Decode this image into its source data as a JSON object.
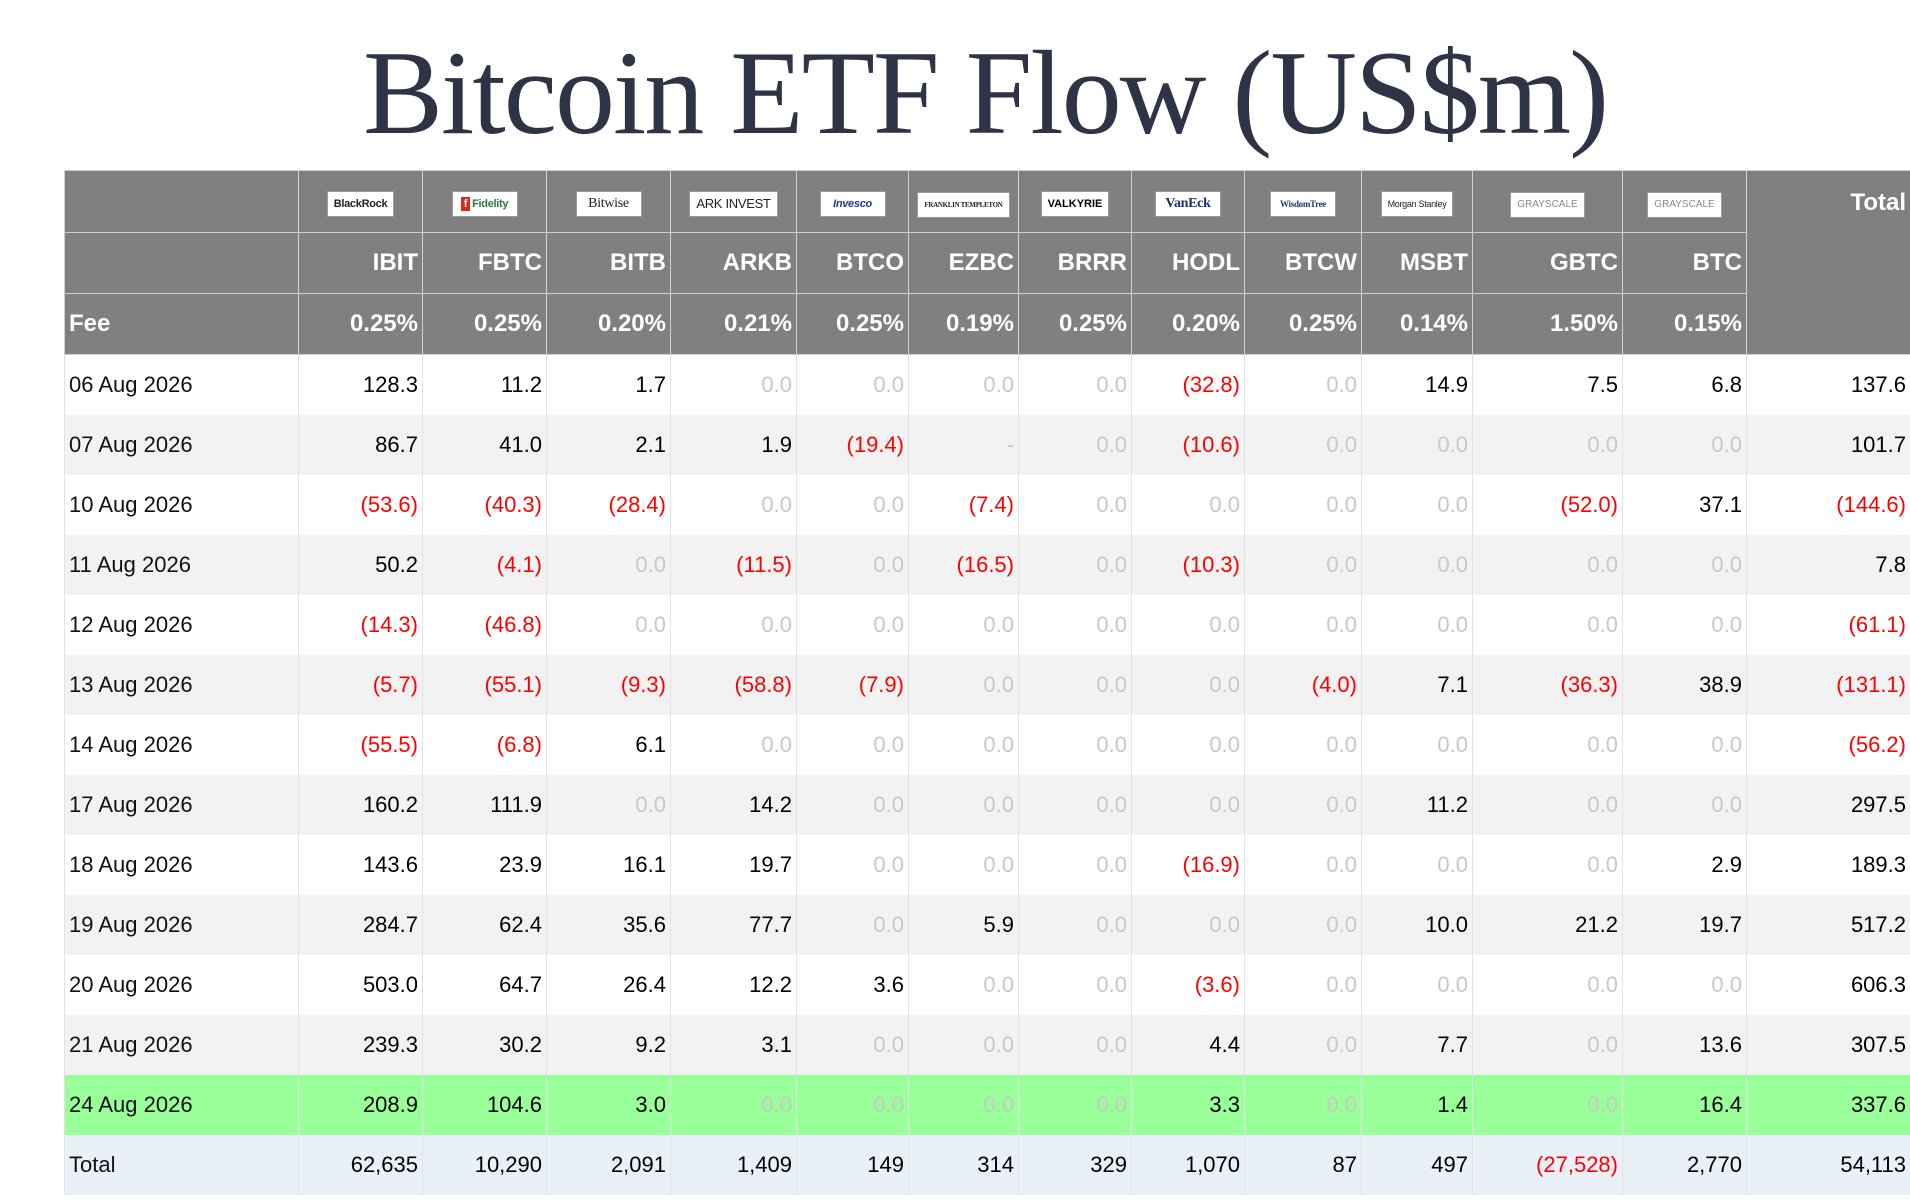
{
  "title": "Bitcoin ETF Flow (US$m)",
  "header": {
    "total_label": "Total",
    "fee_label": "Fee",
    "issuers": [
      {
        "logo_text": "BlackRock",
        "icon": "blackrock-logo-icon",
        "ticker": "IBIT",
        "fee": "0.25%"
      },
      {
        "logo_text": "Fidelity",
        "icon": "fidelity-logo-icon",
        "ticker": "FBTC",
        "fee": "0.25%"
      },
      {
        "logo_text": "Bitwise",
        "icon": "bitwise-logo-icon",
        "ticker": "BITB",
        "fee": "0.20%"
      },
      {
        "logo_text": "ARK INVEST",
        "icon": "ark-invest-logo-icon",
        "ticker": "ARKB",
        "fee": "0.21%"
      },
      {
        "logo_text": "Invesco",
        "icon": "invesco-logo-icon",
        "ticker": "BTCO",
        "fee": "0.25%"
      },
      {
        "logo_text": "FRANKLIN TEMPLETON",
        "icon": "franklin-templeton-logo-icon",
        "ticker": "EZBC",
        "fee": "0.19%"
      },
      {
        "logo_text": "VALKYRIE",
        "icon": "valkyrie-logo-icon",
        "ticker": "BRRR",
        "fee": "0.25%"
      },
      {
        "logo_text": "VanEck",
        "icon": "vaneck-logo-icon",
        "ticker": "HODL",
        "fee": "0.20%"
      },
      {
        "logo_text": "WisdomTree",
        "icon": "wisdomtree-logo-icon",
        "ticker": "BTCW",
        "fee": "0.25%"
      },
      {
        "logo_text": "Morgan Stanley",
        "icon": "morgan-stanley-logo-icon",
        "ticker": "MSBT",
        "fee": "0.14%"
      },
      {
        "logo_text": "GRAYSCALE",
        "icon": "grayscale-logo-icon",
        "ticker": "GBTC",
        "fee": "1.50%"
      },
      {
        "logo_text": "GRAYSCALE",
        "icon": "grayscale-logo-icon",
        "ticker": "BTC",
        "fee": "0.15%"
      }
    ]
  },
  "rows": [
    {
      "date": "06 Aug 2026",
      "values": [
        "128.3",
        "11.2",
        "1.7",
        "0.0",
        "0.0",
        "0.0",
        "0.0",
        "(32.8)",
        "0.0",
        "14.9",
        "7.5",
        "6.8"
      ],
      "total": "137.6"
    },
    {
      "date": "07 Aug 2026",
      "values": [
        "86.7",
        "41.0",
        "2.1",
        "1.9",
        "(19.4)",
        "-",
        "0.0",
        "(10.6)",
        "0.0",
        "0.0",
        "0.0",
        "0.0"
      ],
      "total": "101.7"
    },
    {
      "date": "10 Aug 2026",
      "values": [
        "(53.6)",
        "(40.3)",
        "(28.4)",
        "0.0",
        "0.0",
        "(7.4)",
        "0.0",
        "0.0",
        "0.0",
        "0.0",
        "(52.0)",
        "37.1"
      ],
      "total": "(144.6)"
    },
    {
      "date": "11 Aug 2026",
      "values": [
        "50.2",
        "(4.1)",
        "0.0",
        "(11.5)",
        "0.0",
        "(16.5)",
        "0.0",
        "(10.3)",
        "0.0",
        "0.0",
        "0.0",
        "0.0"
      ],
      "total": "7.8"
    },
    {
      "date": "12 Aug 2026",
      "values": [
        "(14.3)",
        "(46.8)",
        "0.0",
        "0.0",
        "0.0",
        "0.0",
        "0.0",
        "0.0",
        "0.0",
        "0.0",
        "0.0",
        "0.0"
      ],
      "total": "(61.1)"
    },
    {
      "date": "13 Aug 2026",
      "values": [
        "(5.7)",
        "(55.1)",
        "(9.3)",
        "(58.8)",
        "(7.9)",
        "0.0",
        "0.0",
        "0.0",
        "(4.0)",
        "7.1",
        "(36.3)",
        "38.9"
      ],
      "total": "(131.1)"
    },
    {
      "date": "14 Aug 2026",
      "values": [
        "(55.5)",
        "(6.8)",
        "6.1",
        "0.0",
        "0.0",
        "0.0",
        "0.0",
        "0.0",
        "0.0",
        "0.0",
        "0.0",
        "0.0"
      ],
      "total": "(56.2)"
    },
    {
      "date": "17 Aug 2026",
      "values": [
        "160.2",
        "111.9",
        "0.0",
        "14.2",
        "0.0",
        "0.0",
        "0.0",
        "0.0",
        "0.0",
        "11.2",
        "0.0",
        "0.0"
      ],
      "total": "297.5"
    },
    {
      "date": "18 Aug 2026",
      "values": [
        "143.6",
        "23.9",
        "16.1",
        "19.7",
        "0.0",
        "0.0",
        "0.0",
        "(16.9)",
        "0.0",
        "0.0",
        "0.0",
        "2.9"
      ],
      "total": "189.3"
    },
    {
      "date": "19 Aug 2026",
      "values": [
        "284.7",
        "62.4",
        "35.6",
        "77.7",
        "0.0",
        "5.9",
        "0.0",
        "0.0",
        "0.0",
        "10.0",
        "21.2",
        "19.7"
      ],
      "total": "517.2"
    },
    {
      "date": "20 Aug 2026",
      "values": [
        "503.0",
        "64.7",
        "26.4",
        "12.2",
        "3.6",
        "0.0",
        "0.0",
        "(3.6)",
        "0.0",
        "0.0",
        "0.0",
        "0.0"
      ],
      "total": "606.3"
    },
    {
      "date": "21 Aug 2026",
      "values": [
        "239.3",
        "30.2",
        "9.2",
        "3.1",
        "0.0",
        "0.0",
        "0.0",
        "4.4",
        "0.0",
        "7.7",
        "0.0",
        "13.6"
      ],
      "total": "307.5"
    },
    {
      "date": "24 Aug 2026",
      "values": [
        "208.9",
        "104.6",
        "3.0",
        "0.0",
        "0.0",
        "0.0",
        "0.0",
        "3.3",
        "0.0",
        "1.4",
        "0.0",
        "16.4"
      ],
      "total": "337.6",
      "highlight": true
    }
  ],
  "totals": {
    "label": "Total",
    "values": [
      "62,635",
      "10,290",
      "2,091",
      "1,409",
      "149",
      "314",
      "329",
      "1,070",
      "87",
      "497",
      "(27,528)",
      "2,770"
    ],
    "total": "54,113"
  },
  "colors": {
    "header_bg": "#808080",
    "negative": "#ff0000",
    "zero": "#c8c8c8",
    "latest_row": "#99ff99",
    "totals_row": "#eaf0f8",
    "title": "#2e3346"
  }
}
